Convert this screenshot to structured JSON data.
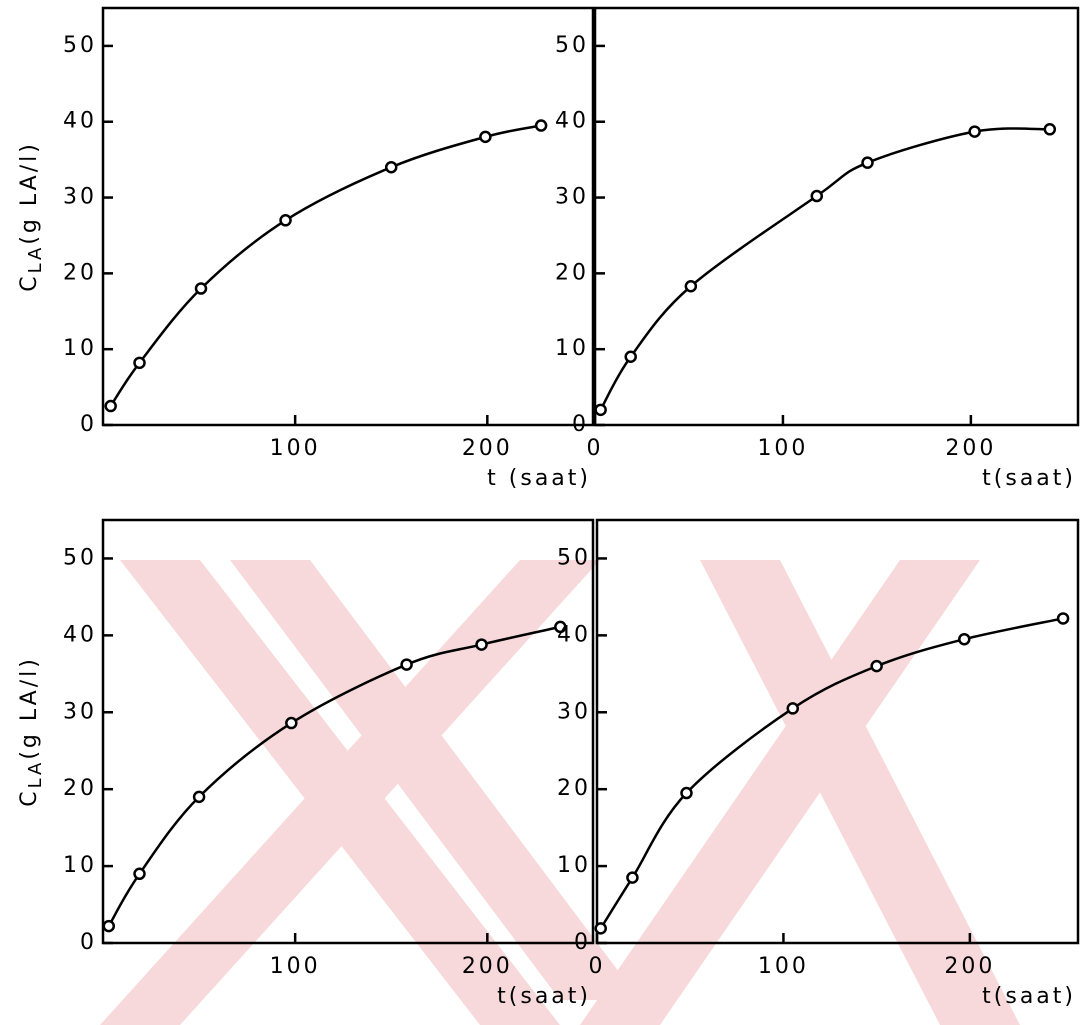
{
  "chart_data": [
    {
      "type": "line",
      "xlabel": "t (saat)",
      "ylabel": [
        "C",
        "LA",
        "(g LA/l)"
      ],
      "color": "#000000",
      "marker": "circle",
      "x": [
        4,
        19,
        51,
        95,
        150,
        199,
        228
      ],
      "values": [
        2.5,
        8.2,
        18,
        27,
        34,
        38,
        39.5
      ],
      "xlim": [
        0,
        255
      ],
      "ylim": [
        0,
        55
      ],
      "xticks": [
        100,
        200
      ],
      "yticks": [
        0,
        10,
        20,
        30,
        40,
        50
      ]
    },
    {
      "type": "line",
      "xlabel": "t(saat)",
      "color": "#000000",
      "marker": "circle",
      "x": [
        3,
        19,
        51,
        118,
        145,
        202,
        242
      ],
      "values": [
        2,
        9,
        18.3,
        30.2,
        34.6,
        38.7,
        39
      ],
      "xlim": [
        0,
        257
      ],
      "ylim": [
        0,
        55
      ],
      "xticks": [
        0,
        100,
        200
      ],
      "yticks": [
        0,
        10,
        20,
        30,
        40,
        50
      ]
    },
    {
      "type": "line",
      "xlabel": "t(saat)",
      "ylabel": [
        "C",
        "LA",
        "(g LA/l)"
      ],
      "color": "#000000",
      "marker": "circle",
      "x": [
        3,
        19,
        50,
        98,
        158,
        197,
        238
      ],
      "values": [
        2.2,
        9,
        19,
        28.6,
        36.2,
        38.8,
        41.1
      ],
      "xlim": [
        0,
        255
      ],
      "ylim": [
        0,
        55
      ],
      "xticks": [
        100,
        200
      ],
      "yticks": [
        0,
        10,
        20,
        30,
        40,
        50
      ]
    },
    {
      "type": "line",
      "xlabel": "t(saat)",
      "color": "#000000",
      "marker": "circle",
      "x": [
        2,
        19,
        48,
        105,
        150,
        197,
        250
      ],
      "values": [
        1.9,
        8.5,
        19.5,
        30.5,
        36,
        39.5,
        42.2
      ],
      "xlim": [
        0,
        258
      ],
      "ylim": [
        0,
        55
      ],
      "xticks": [
        0,
        100,
        200
      ],
      "yticks": [
        0,
        10,
        20,
        30,
        40,
        50
      ]
    }
  ]
}
